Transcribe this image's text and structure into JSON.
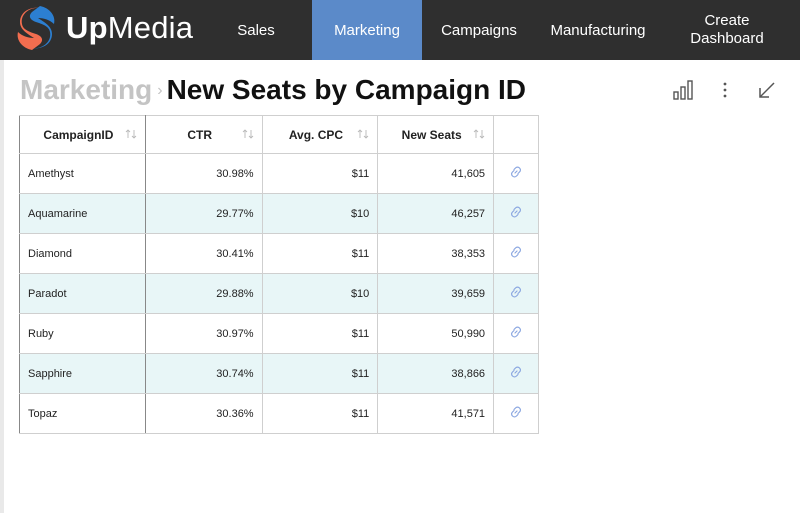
{
  "app": {
    "name_bold": "Up",
    "name_light": "Media"
  },
  "nav": {
    "sales": "Sales",
    "marketing": "Marketing",
    "campaigns": "Campaigns",
    "manufacturing": "Manufacturing",
    "create_line1": "Create",
    "create_line2": "Dashboard",
    "active": "Marketing"
  },
  "breadcrumb": {
    "parent": "Marketing",
    "separator": "›",
    "title": "New Seats by Campaign ID"
  },
  "toolbar": {
    "icons": [
      "bar-chart-icon",
      "more-vertical-icon",
      "collapse-icon"
    ]
  },
  "table": {
    "columns": [
      "CampaignID",
      "CTR",
      "Avg. CPC",
      "New Seats"
    ],
    "rows": [
      {
        "id": "Amethyst",
        "ctr": "30.98%",
        "cpc": "$11",
        "seats": "41,605"
      },
      {
        "id": "Aquamarine",
        "ctr": "29.77%",
        "cpc": "$10",
        "seats": "46,257"
      },
      {
        "id": "Diamond",
        "ctr": "30.41%",
        "cpc": "$11",
        "seats": "38,353"
      },
      {
        "id": "Paradot",
        "ctr": "29.88%",
        "cpc": "$10",
        "seats": "39,659"
      },
      {
        "id": "Ruby",
        "ctr": "30.97%",
        "cpc": "$11",
        "seats": "50,990"
      },
      {
        "id": "Sapphire",
        "ctr": "30.74%",
        "cpc": "$11",
        "seats": "38,866"
      },
      {
        "id": "Topaz",
        "ctr": "30.36%",
        "cpc": "$11",
        "seats": "41,571"
      }
    ]
  },
  "colors": {
    "topbar": "#2f2f2f",
    "active_nav": "#5b8ac9",
    "alt_row": "#e8f6f7",
    "logo_orange": "#f26d4f",
    "logo_blue": "#2c7fd1",
    "link_icon": "#8aa6e0"
  }
}
